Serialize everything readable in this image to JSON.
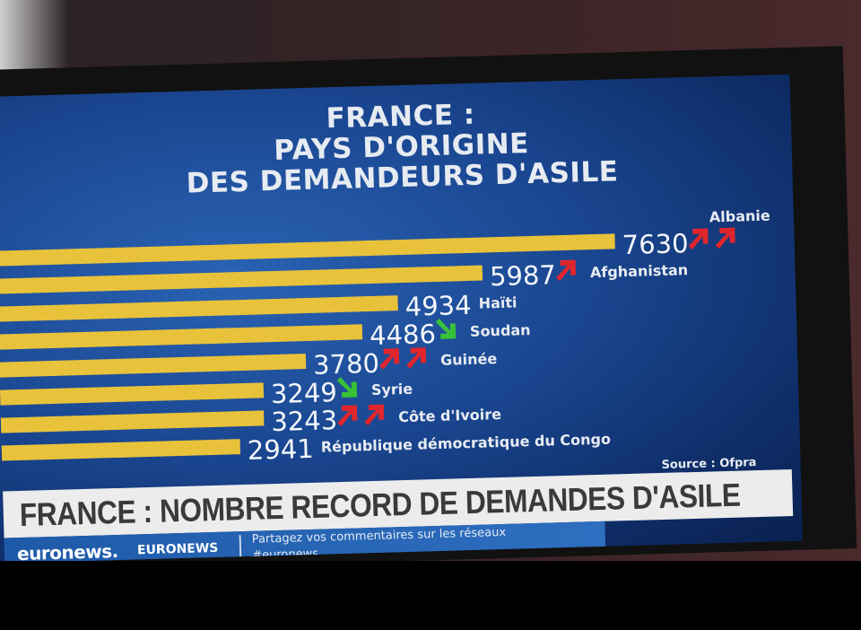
{
  "chart_data": {
    "type": "bar",
    "orientation": "horizontal",
    "title": "FRANCE : PAYS D'ORIGINE DES DEMANDEURS D'ASILE",
    "title_lines": [
      "FRANCE :",
      "PAYS D'ORIGINE",
      "DES DEMANDEURS D'ASILE"
    ],
    "categories": [
      "Albanie",
      "Afghanistan",
      "Haïti",
      "Soudan",
      "Guinée",
      "Syrie",
      "Côte d'Ivoire",
      "République démocratique du Congo"
    ],
    "values": [
      7630,
      5987,
      4934,
      4486,
      3780,
      3249,
      3243,
      2941
    ],
    "value_labels": [
      "7630",
      "5987",
      "4934",
      "4486",
      "3780",
      "3249",
      "3243",
      "2941"
    ],
    "trends": [
      "up-2",
      "up-1",
      "none",
      "down-1",
      "up-2",
      "down-1",
      "up-2",
      "none"
    ],
    "source": "Source : Ofpra",
    "colors": {
      "bar": "#e8c23a",
      "up_arrow": "#e0262c",
      "down_arrow": "#39c13a",
      "background": "#1a4690"
    }
  },
  "ticker": {
    "headline": "FRANCE : NOMBRE RECORD DE DEMANDES D'ASILE"
  },
  "strip": {
    "logo": "euronews.",
    "brand": "EURONEWS",
    "social_line1": "Partagez vos commentaires sur les réseaux",
    "social_line2": "#euronews"
  }
}
